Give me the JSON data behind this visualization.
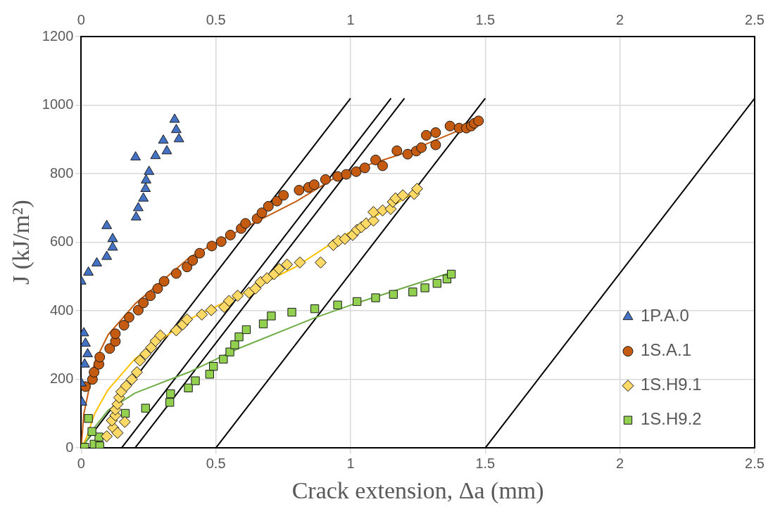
{
  "chart_data": {
    "type": "scatter",
    "xlabel": "Crack extension, Δa (mm)",
    "ylabel": "J (kJ/m²)",
    "xlim": [
      0,
      2.5
    ],
    "xticks": [
      0,
      0.5,
      1,
      1.5,
      2,
      2.5
    ],
    "x2lim": [
      0,
      2.5
    ],
    "x2ticks": [
      0,
      0.5,
      1,
      1.5,
      2,
      2.5
    ],
    "ylim": [
      0,
      1200
    ],
    "yticks": [
      0,
      200,
      400,
      600,
      800,
      1000,
      1200
    ],
    "grid": true,
    "legend": "bottom right",
    "series": [
      {
        "name": "1P.A.0",
        "marker": "triangle",
        "color": "#4472c4",
        "x": [
          0,
          0.027,
          0.058,
          0.095,
          0.117,
          0.117,
          0.095,
          0.204,
          0.212,
          0.231,
          0.239,
          0.241,
          0.252,
          0.202,
          0.276,
          0.305,
          0.318,
          0.347,
          0.353,
          0.363,
          0.01,
          0.016,
          0.024,
          0.013,
          0,
          0.003
        ],
        "values": [
          486,
          512,
          539,
          558,
          585,
          610,
          648,
          673,
          700,
          728,
          756,
          781,
          806,
          848,
          852,
          897,
          866,
          958,
          928,
          901,
          335,
          305,
          274,
          244,
          189,
          133
        ]
      },
      {
        "name": "1S.A.1",
        "marker": "circle",
        "color": "#c55a11",
        "x": [
          0.016,
          0.042,
          0.048,
          0.066,
          0.069,
          0.106,
          0.127,
          0.127,
          0.159,
          0.178,
          0.212,
          0.231,
          0.257,
          0.284,
          0.308,
          0.353,
          0.393,
          0.414,
          0.44,
          0.485,
          0.52,
          0.554,
          0.594,
          0.61,
          0.653,
          0.671,
          0.695,
          0.727,
          0.751,
          0.809,
          0.844,
          0.865,
          0.907,
          0.952,
          0.984,
          1.021,
          1.053,
          1.093,
          1.119,
          1.172,
          1.212,
          1.244,
          1.263,
          1.281,
          1.316,
          1.316,
          1.369,
          1.403,
          1.43,
          1.448,
          1.459,
          1.475
        ],
        "values": [
          179,
          200,
          221,
          244,
          265,
          290,
          311,
          333,
          358,
          381,
          402,
          423,
          444,
          465,
          486,
          509,
          528,
          547,
          568,
          589,
          602,
          621,
          640,
          655,
          669,
          686,
          705,
          720,
          737,
          752,
          760,
          768,
          783,
          792,
          798,
          806,
          817,
          840,
          823,
          867,
          857,
          866,
          876,
          912,
          920,
          884,
          939,
          933,
          933,
          939,
          947,
          954
        ]
      },
      {
        "name": "1S.H9.1",
        "marker": "diamond",
        "color": "#ffd966",
        "x": [
          0.095,
          0.119,
          0.135,
          0.114,
          0.162,
          0.127,
          0.127,
          0.135,
          0.141,
          0.149,
          0.167,
          0.188,
          0.207,
          0.218,
          0.239,
          0.26,
          0.276,
          0.294,
          0.353,
          0.377,
          0.393,
          0.448,
          0.483,
          0.531,
          0.549,
          0.581,
          0.623,
          0.647,
          0.666,
          0.69,
          0.716,
          0.735,
          0.764,
          0.812,
          0.889,
          0.936,
          0.955,
          0.979,
          1.008,
          1.024,
          1.04,
          1.058,
          1.085,
          1.085,
          1.119,
          1.149,
          1.157,
          1.167,
          1.194,
          1.236,
          1.247
        ],
        "values": [
          34,
          59,
          44,
          80,
          76,
          95,
          112,
          128,
          147,
          164,
          181,
          200,
          221,
          255,
          274,
          293,
          312,
          328,
          343,
          360,
          375,
          389,
          402,
          411,
          429,
          444,
          453,
          465,
          484,
          495,
          507,
          522,
          535,
          541,
          541,
          592,
          604,
          610,
          621,
          636,
          644,
          655,
          663,
          688,
          693,
          697,
          718,
          728,
          737,
          741,
          756
        ]
      },
      {
        "name": "1S.H9.2",
        "marker": "square",
        "color": "#92d050",
        "x": [
          0,
          0.013,
          0.048,
          0.069,
          0.066,
          0.04,
          0.027,
          0.164,
          0.239,
          0.329,
          0.332,
          0.398,
          0.424,
          0.477,
          0.491,
          0.528,
          0.552,
          0.57,
          0.586,
          0.613,
          0.676,
          0.706,
          0.782,
          0.867,
          0.952,
          1.024,
          1.093,
          1.159,
          1.231,
          1.276,
          1.321,
          1.358,
          1.374
        ],
        "values": [
          0,
          2,
          11,
          6,
          32,
          48,
          86,
          101,
          116,
          133,
          158,
          175,
          196,
          215,
          238,
          259,
          280,
          301,
          324,
          345,
          362,
          385,
          396,
          406,
          417,
          427,
          438,
          448,
          455,
          467,
          480,
          493,
          507
        ]
      },
      {
        "type": "line",
        "marker": "none",
        "color": "#c55a11",
        "x": [
          0,
          0.01,
          0.05,
          0.1,
          0.2,
          0.406,
          0.6,
          0.8,
          0.971,
          1.2,
          1.475
        ],
        "values": [
          0,
          100,
          250,
          330,
          420,
          558,
          640,
          720,
          802,
          860,
          950
        ]
      },
      {
        "type": "line",
        "marker": "none",
        "color": "#ffc000",
        "x": [
          0,
          0.02,
          0.05,
          0.1,
          0.2,
          0.4,
          0.6,
          0.8,
          0.936,
          1.247
        ],
        "values": [
          0,
          30,
          100,
          170,
          260,
          375,
          450,
          530,
          600,
          750
        ]
      },
      {
        "type": "line",
        "marker": "none",
        "color": "#70ad47",
        "x": [
          0,
          0.02,
          0.05,
          0.1,
          0.2,
          0.406,
          0.584,
          0.865,
          1.024,
          1.374
        ],
        "values": [
          0,
          20,
          60,
          110,
          160,
          223,
          290,
          379,
          423,
          512
        ]
      },
      {
        "type": "line",
        "marker": "none",
        "color": "#000000",
        "x": [
          0,
          1
        ],
        "values": [
          0,
          1020
        ]
      },
      {
        "type": "line",
        "marker": "none",
        "color": "#000000",
        "x": [
          0.15,
          1.15
        ],
        "values": [
          0,
          1020
        ]
      },
      {
        "type": "line",
        "marker": "none",
        "color": "#000000",
        "x": [
          0.2,
          1.2
        ],
        "values": [
          0,
          1020
        ]
      },
      {
        "type": "line",
        "marker": "none",
        "color": "#000000",
        "x": [
          0.5,
          1.5
        ],
        "values": [
          0,
          1020
        ]
      },
      {
        "type": "line",
        "marker": "none",
        "color": "#000000",
        "x": [
          1.5,
          2.5
        ],
        "values": [
          0,
          1020
        ]
      }
    ]
  }
}
